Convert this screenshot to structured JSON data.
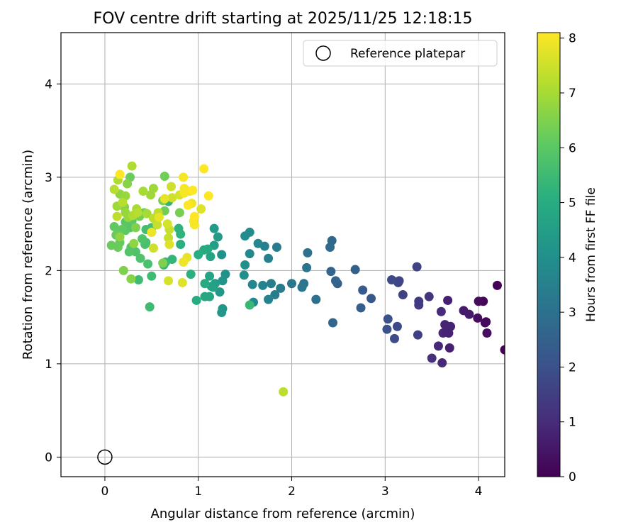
{
  "chart_data": {
    "type": "scatter",
    "title": "FOV centre drift starting at 2025/11/25 12:18:15",
    "xlabel": "Angular distance from reference (arcmin)",
    "ylabel": "Rotation from reference (arcmin)",
    "xlim": [
      -0.47,
      4.28
    ],
    "ylim": [
      -0.21,
      4.55
    ],
    "xticks": [
      "0",
      "1",
      "2",
      "3",
      "4"
    ],
    "yticks": [
      "0",
      "1",
      "2",
      "3",
      "4"
    ],
    "grid": true,
    "legend": {
      "position": "top-right",
      "entries": [
        "Reference platepar"
      ]
    },
    "reference": {
      "x": 0,
      "y": 0
    },
    "colorbar": {
      "label": "Hours from first FF file",
      "min": 0,
      "max": 8.1,
      "ticks": [
        "0",
        "1",
        "2",
        "3",
        "4",
        "5",
        "6",
        "7",
        "8"
      ],
      "colormap": "viridis"
    },
    "series": [
      {
        "points": [
          [
            4.28,
            1.15,
            0.05
          ],
          [
            4.2,
            1.84,
            0.05
          ],
          [
            4.05,
            1.67,
            0.1
          ],
          [
            4.0,
            1.67,
            0.2
          ],
          [
            4.08,
            1.45,
            0.1
          ],
          [
            3.99,
            1.49,
            0.3
          ],
          [
            4.07,
            1.44,
            0.2
          ],
          [
            4.09,
            1.33,
            0.3
          ],
          [
            3.9,
            1.53,
            0.6
          ],
          [
            3.84,
            1.57,
            0.6
          ],
          [
            3.7,
            1.4,
            0.8
          ],
          [
            3.67,
            1.68,
            0.7
          ],
          [
            3.64,
            1.42,
            0.8
          ],
          [
            3.62,
            1.33,
            0.9
          ],
          [
            3.66,
            1.34,
            0.8
          ],
          [
            3.68,
            1.33,
            0.8
          ],
          [
            3.69,
            1.17,
            0.7
          ],
          [
            3.57,
            1.19,
            0.9
          ],
          [
            3.6,
            1.56,
            1.0
          ],
          [
            3.61,
            1.01,
            0.9
          ],
          [
            3.5,
            1.06,
            1.1
          ],
          [
            3.47,
            1.72,
            1.2
          ],
          [
            3.36,
            1.67,
            1.4
          ],
          [
            3.36,
            1.63,
            1.4
          ],
          [
            3.35,
            1.31,
            1.5
          ],
          [
            3.34,
            2.04,
            1.6
          ],
          [
            3.19,
            1.74,
            1.6
          ],
          [
            3.15,
            1.89,
            1.7
          ],
          [
            3.14,
            1.87,
            1.7
          ],
          [
            3.07,
            1.9,
            1.8
          ],
          [
            3.13,
            1.4,
            1.8
          ],
          [
            3.1,
            1.27,
            1.9
          ],
          [
            3.03,
            1.48,
            2.0
          ],
          [
            3.02,
            1.37,
            2.0
          ],
          [
            2.85,
            1.7,
            2.2
          ],
          [
            2.76,
            1.79,
            2.3
          ],
          [
            2.74,
            1.6,
            2.4
          ],
          [
            2.68,
            2.01,
            2.5
          ],
          [
            2.49,
            1.86,
            2.5
          ],
          [
            2.47,
            1.89,
            2.6
          ],
          [
            2.42,
            1.99,
            2.6
          ],
          [
            2.44,
            1.44,
            2.7
          ],
          [
            2.43,
            2.32,
            2.7
          ],
          [
            2.41,
            2.25,
            2.8
          ],
          [
            2.26,
            1.69,
            3.0
          ],
          [
            2.17,
            2.19,
            3.0
          ],
          [
            2.16,
            2.03,
            3.1
          ],
          [
            2.13,
            1.86,
            3.1
          ],
          [
            2.11,
            1.82,
            3.2
          ],
          [
            2.0,
            1.86,
            3.2
          ],
          [
            1.88,
            1.81,
            3.3
          ],
          [
            1.84,
            2.25,
            3.3
          ],
          [
            1.82,
            1.74,
            3.4
          ],
          [
            1.78,
            1.86,
            3.4
          ],
          [
            1.75,
            2.13,
            3.5
          ],
          [
            1.71,
            2.26,
            3.5
          ],
          [
            1.75,
            1.69,
            3.6
          ],
          [
            1.69,
            1.84,
            3.6
          ],
          [
            1.64,
            2.29,
            3.7
          ],
          [
            1.58,
            1.85,
            3.7
          ],
          [
            1.59,
            1.66,
            3.8
          ],
          [
            1.55,
            2.18,
            3.8
          ],
          [
            1.55,
            2.41,
            3.9
          ],
          [
            1.5,
            2.37,
            3.9
          ],
          [
            1.5,
            2.06,
            4.0
          ],
          [
            1.49,
            1.95,
            4.0
          ],
          [
            1.29,
            1.96,
            4.1
          ],
          [
            1.25,
            2.17,
            4.1
          ],
          [
            1.26,
            1.89,
            4.2
          ],
          [
            1.26,
            1.59,
            4.2
          ],
          [
            1.25,
            1.55,
            4.3
          ],
          [
            1.23,
            1.77,
            4.3
          ],
          [
            1.21,
            2.36,
            4.4
          ],
          [
            1.17,
            2.45,
            4.4
          ],
          [
            1.17,
            2.27,
            4.5
          ],
          [
            1.18,
            1.86,
            4.5
          ],
          [
            1.16,
            1.82,
            4.6
          ],
          [
            1.14,
            1.83,
            4.6
          ],
          [
            1.13,
            2.15,
            4.7
          ],
          [
            1.12,
            1.94,
            4.7
          ],
          [
            1.12,
            1.72,
            4.8
          ],
          [
            1.07,
            1.72,
            4.8
          ],
          [
            1.07,
            1.86,
            4.9
          ],
          [
            1.1,
            2.23,
            4.9
          ],
          [
            1.06,
            2.22,
            4.9
          ],
          [
            1.0,
            2.17,
            5.0
          ],
          [
            0.98,
            1.68,
            5.0
          ],
          [
            0.92,
            1.96,
            5.1
          ],
          [
            0.81,
            2.28,
            5.1
          ],
          [
            0.79,
            2.45,
            5.2
          ],
          [
            0.81,
            2.39,
            5.2
          ],
          [
            0.72,
            2.12,
            5.3
          ],
          [
            0.68,
            2.74,
            5.3
          ],
          [
            0.63,
            2.06,
            5.4
          ],
          [
            0.65,
            2.09,
            5.4
          ],
          [
            1.55,
            1.63,
            5.4
          ],
          [
            0.5,
            1.94,
            5.5
          ],
          [
            0.48,
            1.61,
            5.5
          ],
          [
            0.36,
            1.9,
            5.5
          ],
          [
            0.5,
            2.41,
            5.6
          ],
          [
            0.5,
            2.46,
            5.6
          ],
          [
            0.44,
            2.44,
            5.6
          ],
          [
            0.44,
            2.3,
            5.7
          ],
          [
            0.43,
            2.28,
            5.7
          ],
          [
            0.46,
            2.07,
            5.7
          ],
          [
            0.38,
            2.13,
            5.8
          ],
          [
            0.4,
            2.34,
            5.8
          ],
          [
            0.33,
            2.2,
            5.8
          ],
          [
            0.28,
            2.25,
            5.9
          ],
          [
            0.26,
            2.2,
            5.9
          ],
          [
            0.27,
            2.46,
            5.9
          ],
          [
            0.29,
            2.53,
            6.0
          ],
          [
            0.22,
            2.43,
            6.0
          ],
          [
            0.22,
            2.52,
            6.0
          ],
          [
            0.18,
            2.44,
            6.1
          ],
          [
            0.16,
            2.3,
            6.1
          ],
          [
            0.1,
            2.47,
            6.1
          ],
          [
            0.12,
            2.38,
            6.2
          ],
          [
            0.14,
            2.25,
            6.2
          ],
          [
            0.07,
            2.27,
            6.2
          ],
          [
            0.27,
            3.0,
            6.2
          ],
          [
            0.64,
            3.01,
            6.3
          ],
          [
            0.42,
            2.62,
            6.3
          ],
          [
            0.64,
            2.64,
            6.3
          ],
          [
            0.62,
            2.75,
            6.4
          ],
          [
            0.8,
            2.62,
            6.4
          ],
          [
            0.37,
            2.58,
            6.4
          ],
          [
            0.33,
            2.46,
            6.5
          ],
          [
            0.2,
            2.0,
            6.5
          ],
          [
            0.62,
            2.08,
            6.5
          ],
          [
            0.28,
            1.91,
            6.6
          ],
          [
            0.21,
            2.68,
            6.6
          ],
          [
            0.24,
            2.93,
            6.6
          ],
          [
            0.16,
            2.82,
            6.7
          ],
          [
            0.31,
            2.29,
            6.7
          ],
          [
            0.16,
            2.36,
            6.7
          ],
          [
            0.25,
            2.57,
            6.8
          ],
          [
            0.22,
            2.62,
            6.8
          ],
          [
            0.22,
            2.8,
            6.8
          ],
          [
            0.13,
            2.69,
            6.9
          ],
          [
            0.49,
            2.81,
            6.9
          ],
          [
            0.52,
            2.88,
            6.9
          ],
          [
            0.41,
            2.85,
            7.0
          ],
          [
            0.45,
            2.61,
            7.0
          ],
          [
            0.34,
            2.66,
            7.0
          ],
          [
            0.3,
            2.59,
            7.1
          ],
          [
            0.29,
            3.12,
            7.1
          ],
          [
            0.14,
            2.97,
            7.1
          ],
          [
            0.1,
            2.87,
            7.2
          ],
          [
            0.35,
            2.62,
            7.2
          ],
          [
            0.19,
            2.73,
            7.2
          ],
          [
            0.13,
            2.58,
            7.3
          ],
          [
            0.57,
            2.62,
            7.3
          ],
          [
            0.52,
            2.56,
            7.3
          ],
          [
            0.56,
            2.49,
            7.4
          ],
          [
            0.68,
            2.35,
            7.4
          ],
          [
            0.69,
            2.44,
            7.4
          ],
          [
            0.71,
            2.9,
            7.5
          ],
          [
            0.72,
            2.78,
            7.5
          ],
          [
            1.91,
            0.7,
            7.3
          ],
          [
            0.52,
            2.24,
            7.5
          ],
          [
            0.67,
            2.5,
            7.6
          ],
          [
            0.8,
            2.81,
            7.6
          ],
          [
            0.68,
            1.89,
            7.6
          ],
          [
            0.83,
            1.87,
            7.7
          ],
          [
            0.69,
            2.28,
            7.7
          ],
          [
            1.03,
            2.66,
            7.7
          ],
          [
            0.88,
            2.14,
            7.8
          ],
          [
            0.64,
            2.77,
            7.8
          ],
          [
            0.58,
            2.57,
            7.8
          ],
          [
            0.5,
            2.41,
            7.9
          ],
          [
            0.84,
            2.09,
            7.9
          ],
          [
            0.93,
            2.72,
            7.9
          ],
          [
            0.95,
            2.53,
            8.0
          ],
          [
            0.91,
            2.85,
            8.0
          ],
          [
            0.96,
            2.49,
            8.0
          ],
          [
            0.85,
            2.88,
            8.0
          ],
          [
            0.84,
            3.0,
            8.0
          ],
          [
            0.85,
            2.83,
            8.0
          ],
          [
            0.94,
            2.86,
            8.1
          ],
          [
            1.11,
            2.8,
            8.1
          ],
          [
            1.06,
            3.09,
            8.1
          ],
          [
            0.16,
            3.03,
            8.1
          ],
          [
            0.89,
            2.7,
            8.1
          ],
          [
            0.96,
            2.58,
            8.1
          ]
        ]
      }
    ]
  }
}
